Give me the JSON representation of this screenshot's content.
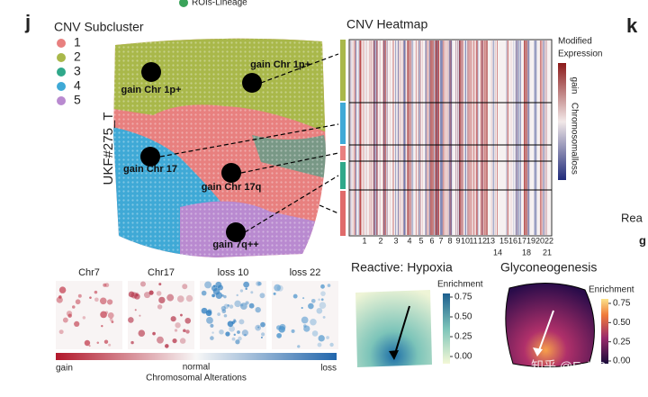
{
  "panel_labels": [
    "j",
    "k"
  ],
  "top_legend": "ROIs-Lineage",
  "subcluster_legend": {
    "title": "CNV Subcluster",
    "items": [
      {
        "label": "1",
        "color": "#e8807f"
      },
      {
        "label": "2",
        "color": "#a9b84a"
      },
      {
        "label": "3",
        "color": "#2fa88a"
      },
      {
        "label": "4",
        "color": "#3fa9d6"
      },
      {
        "label": "5",
        "color": "#b98ad0"
      }
    ]
  },
  "sample_label": "UKF#275_T",
  "spot_labels": [
    "gain Chr 1p+",
    "gain Chr 1p+",
    "gain Chr 17",
    "gain Chr 17q",
    "gain 7q++"
  ],
  "heatmap": {
    "title": "CNV Heatmap",
    "legend_title": [
      "Modified",
      "Expression"
    ],
    "scale_labels": [
      "gain",
      "Chromosomal",
      "loss"
    ],
    "chromosomes_top": [
      "1",
      "2",
      "3",
      "4",
      "5",
      "6",
      "7",
      "8",
      "9",
      "10",
      "11",
      "12",
      "13",
      "15",
      "16",
      "17",
      "19",
      "20",
      "22"
    ],
    "chromosomes_bottom": [
      "14",
      "18",
      "21"
    ]
  },
  "small_maps": {
    "titles": [
      "Chr7",
      "Chr17",
      "loss 10",
      "loss 22"
    ],
    "scale": {
      "left": "gain",
      "middle": "normal",
      "right": "loss",
      "caption": "Chromosomal Alterations"
    }
  },
  "hypoxia": {
    "title": "Reactive: Hypoxia",
    "colorbar_title": "Enrichment",
    "ticks": [
      {
        "value": 0.75,
        "label": "0.75"
      },
      {
        "value": 0.5,
        "label": "0.50"
      },
      {
        "value": 0.25,
        "label": "0.25"
      },
      {
        "value": 0,
        "label": "0.00"
      }
    ]
  },
  "gluconeogenesis": {
    "title": "Glyconeogenesis",
    "colorbar_title": "Enrichment",
    "ticks": [
      {
        "value": 0.75,
        "label": "0.75"
      },
      {
        "value": 0.5,
        "label": "0.50"
      },
      {
        "value": 0.25,
        "label": "0.25"
      },
      {
        "value": 0,
        "label": "0.00"
      }
    ]
  },
  "cut_text": [
    "Rea",
    "g"
  ],
  "watermark": "知乎 @Evil Genius"
}
